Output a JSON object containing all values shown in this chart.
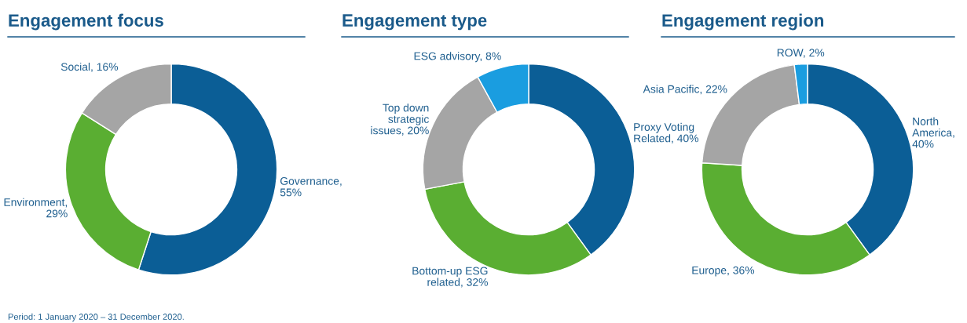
{
  "chart_data": [
    {
      "type": "donut",
      "title": "Engagement focus",
      "categories": [
        "Governance,\n55%",
        "Environment,\n29%",
        "Social, 16%"
      ],
      "values": [
        55,
        29,
        16
      ],
      "colors": [
        "#0b5e96",
        "#5aae32",
        "#a5a5a5"
      ],
      "annotations": [
        "Period: 1 January 2020 – 31 December 2020."
      ]
    },
    {
      "type": "donut",
      "title": "Engagement type",
      "categories": [
        "Proxy Voting\nRelated, 40%",
        "Bottom-up ESG\nrelated, 32%",
        "Top down\nstrategic\nissues, 20%",
        "ESG advisory, 8%"
      ],
      "values": [
        40,
        32,
        20,
        8
      ],
      "colors": [
        "#0b5e96",
        "#5aae32",
        "#a5a5a5",
        "#1a9de0"
      ]
    },
    {
      "type": "donut",
      "title": "Engagement region",
      "categories": [
        "North\nAmerica,\n40%",
        "Europe, 36%",
        "Asia Pacific, 22%",
        "ROW, 2%"
      ],
      "values": [
        40,
        36,
        22,
        2
      ],
      "colors": [
        "#0b5e96",
        "#5aae32",
        "#a5a5a5",
        "#1a9de0"
      ]
    }
  ]
}
